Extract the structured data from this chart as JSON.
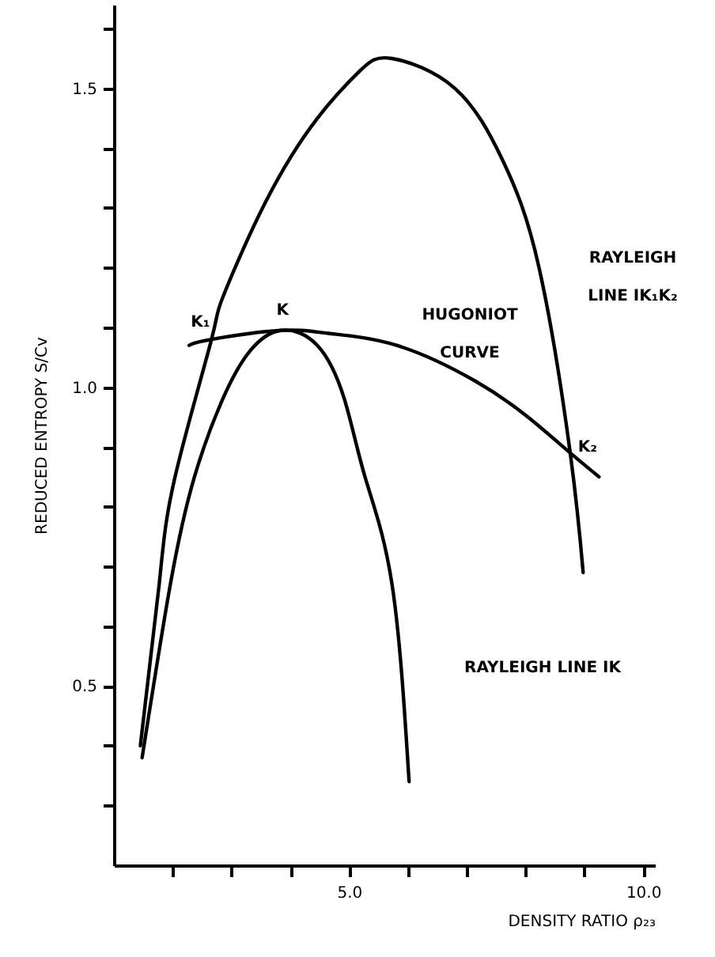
{
  "chart_data": {
    "type": "line",
    "xlabel": "DENSITY RATIO ρ₂₃",
    "ylabel": "REDUCED ENTROPY S/Cv",
    "xlim": [
      1.0,
      10.2
    ],
    "ylim": [
      0.2,
      1.64
    ],
    "xticks": [
      {
        "value": 2,
        "label": null
      },
      {
        "value": 3,
        "label": null
      },
      {
        "value": 4,
        "label": null
      },
      {
        "value": 5,
        "label": "5.0"
      },
      {
        "value": 6,
        "label": null
      },
      {
        "value": 7,
        "label": null
      },
      {
        "value": 8,
        "label": null
      },
      {
        "value": 9,
        "label": null
      },
      {
        "value": 10,
        "label": "10.0"
      }
    ],
    "yticks": [
      {
        "value": 0.3,
        "label": null
      },
      {
        "value": 0.4,
        "label": null
      },
      {
        "value": 0.5,
        "label": "0.5"
      },
      {
        "value": 0.6,
        "label": null
      },
      {
        "value": 0.7,
        "label": null
      },
      {
        "value": 0.8,
        "label": null
      },
      {
        "value": 0.9,
        "label": null
      },
      {
        "value": 1.0,
        "label": "1.0"
      },
      {
        "value": 1.1,
        "label": null
      },
      {
        "value": 1.2,
        "label": null
      },
      {
        "value": 1.3,
        "label": null
      },
      {
        "value": 1.4,
        "label": null
      },
      {
        "value": 1.5,
        "label": "1.5"
      },
      {
        "value": 1.6,
        "label": null
      }
    ],
    "grid": false,
    "marker": "none",
    "line_style": "solid",
    "series": [
      {
        "color": "#000000",
        "x": [
          1.45,
          1.77,
          2.04,
          2.66,
          2.85,
          3.58,
          4.46,
          5.19,
          5.73,
          6.8,
          7.61,
          8.23,
          8.76,
          8.98
        ],
        "values": [
          0.4,
          0.67,
          0.85,
          1.08,
          1.15,
          1.31,
          1.45,
          1.53,
          1.55,
          1.5,
          1.38,
          1.2,
          0.89,
          0.69
        ]
      },
      {
        "color": "#000000",
        "x": [
          1.48,
          1.96,
          2.37,
          2.85,
          3.31,
          3.84,
          4.46,
          4.92,
          5.27,
          5.73,
          6.02
        ],
        "values": [
          0.38,
          0.67,
          0.85,
          0.98,
          1.06,
          1.095,
          1.07,
          0.98,
          0.85,
          0.67,
          0.34
        ]
      },
      {
        "color": "#000000",
        "x": [
          2.28,
          2.66,
          3.84,
          4.65,
          5.81,
          7.15,
          8.04,
          8.76,
          9.25
        ],
        "values": [
          1.07,
          1.08,
          1.095,
          1.09,
          1.07,
          1.01,
          0.95,
          0.89,
          0.85
        ]
      }
    ],
    "annotations": [
      "RAYLEIGH LINE IK₁K₂",
      "HUGONIOT CURVE",
      "RAYLEIGH LINE IK",
      {
        "text": "K₁",
        "x": 2.66,
        "y": 1.08
      },
      {
        "text": "K",
        "x": 3.84,
        "y": 1.095
      },
      {
        "text": "K₂",
        "x": 8.76,
        "y": 0.89
      }
    ]
  }
}
